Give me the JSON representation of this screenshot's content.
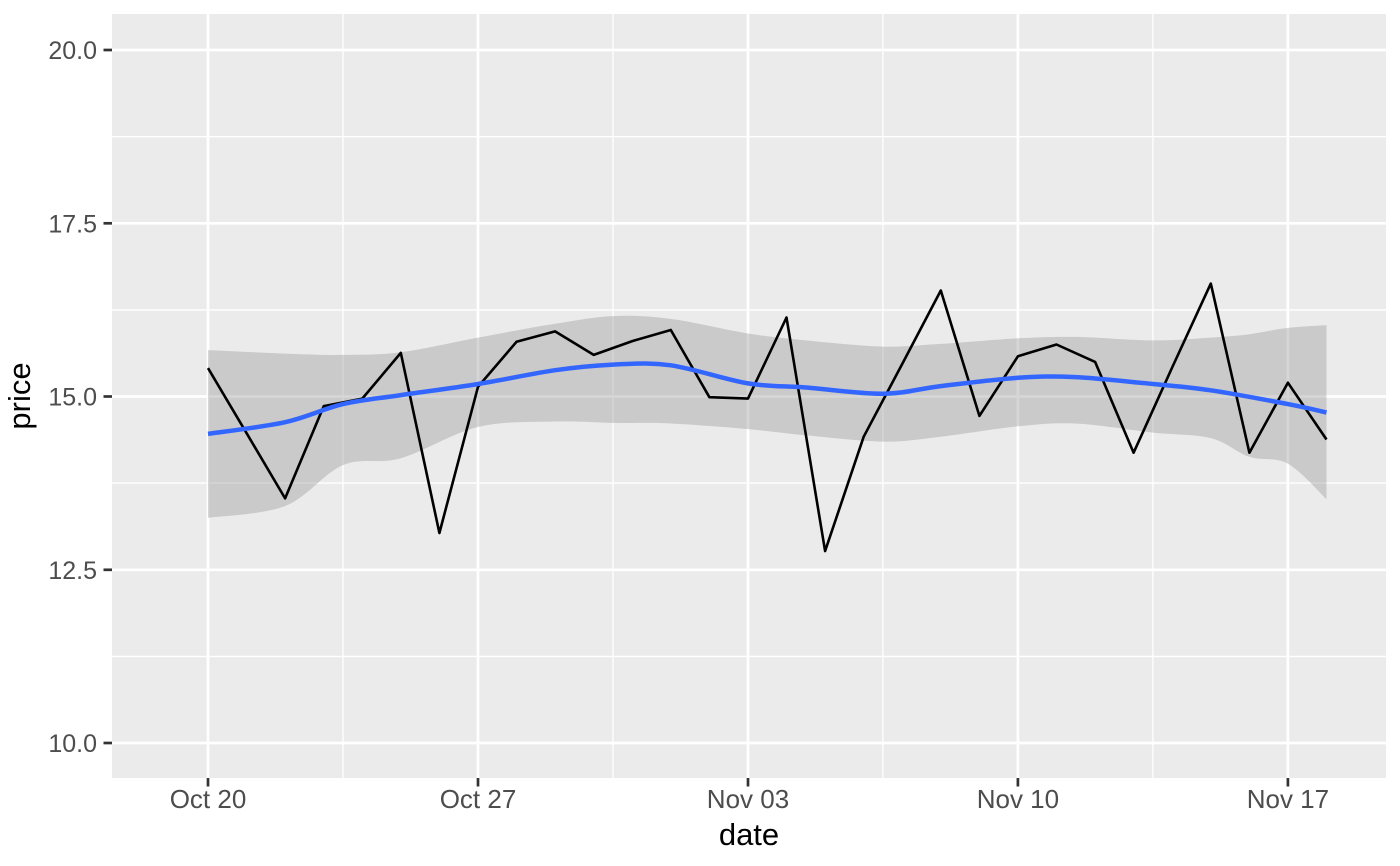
{
  "figure": {
    "x_title": "date",
    "y_title": "price",
    "background": "#FFFFFF",
    "panel_background": "#EBEBEB",
    "gridline_color": "#FFFFFF",
    "tick_mark_color": "#333333",
    "tick_label_color": "#4D4D4D",
    "axis_title_color": "#000000"
  },
  "chart_data": {
    "type": "line",
    "title": "",
    "xlabel": "date",
    "ylabel": "price",
    "grid": true,
    "legend": "none",
    "x_tick_labels": [
      "Oct 20",
      "Oct 27",
      "Nov 03",
      "Nov 10",
      "Nov 17"
    ],
    "x_tick_days": [
      0,
      7,
      14,
      21,
      28
    ],
    "x_minor_days": [
      3.5,
      10.5,
      17.5,
      24.5
    ],
    "y_tick_labels": [
      "10.0",
      "12.5",
      "15.0",
      "17.5",
      "20.0"
    ],
    "y_tick_values": [
      10.0,
      12.5,
      15.0,
      17.5,
      20.0
    ],
    "y_minor_values": [
      11.25,
      13.75,
      16.25,
      18.75
    ],
    "x_range_days": [
      -2.489,
      30.543
    ],
    "ylim": [
      9.495,
      20.52
    ],
    "dates": [
      "Oct 20",
      "Oct 21",
      "Oct 22",
      "Oct 23",
      "Oct 24",
      "Oct 25",
      "Oct 26",
      "Oct 27",
      "Oct 28",
      "Oct 29",
      "Oct 30",
      "Oct 31",
      "Nov 01",
      "Nov 02",
      "Nov 03",
      "Nov 04",
      "Nov 05",
      "Nov 06",
      "Nov 07",
      "Nov 08",
      "Nov 09",
      "Nov 10",
      "Nov 11",
      "Nov 12",
      "Nov 13",
      "Nov 14",
      "Nov 15",
      "Nov 16",
      "Nov 17",
      "Nov 18"
    ],
    "series": [
      {
        "name": "price",
        "type": "line",
        "color": "#000000",
        "stroke_width": 2.6,
        "values": [
          15.41,
          14.47,
          13.53,
          14.86,
          14.97,
          15.63,
          13.03,
          15.14,
          15.79,
          15.94,
          15.6,
          15.8,
          15.96,
          14.99,
          14.97,
          16.14,
          12.77,
          14.42,
          15.47,
          16.53,
          14.72,
          15.58,
          15.75,
          15.5,
          14.19,
          15.42,
          16.63,
          14.19,
          15.2,
          14.38
        ]
      },
      {
        "name": "loess_smooth",
        "type": "smooth",
        "color": "#3366FF",
        "stroke_width": 4.5,
        "x_days": [
          0,
          2,
          3.5,
          5,
          7,
          9,
          10.5,
          12,
          14,
          15.5,
          17.5,
          19,
          21,
          22.5,
          24.5,
          26,
          28,
          29
        ],
        "values": [
          14.46,
          14.63,
          14.89,
          15.02,
          15.18,
          15.38,
          15.46,
          15.45,
          15.19,
          15.13,
          15.04,
          15.15,
          15.27,
          15.28,
          15.18,
          15.09,
          14.89,
          14.77
        ]
      },
      {
        "name": "confidence_ribbon",
        "type": "ribbon",
        "fill": "#999999",
        "opacity": 0.4,
        "x_days": [
          0,
          2,
          3.5,
          5,
          7,
          9,
          10.5,
          12,
          14,
          15.5,
          17.5,
          19,
          21,
          22.5,
          24.5,
          26,
          27,
          28,
          29
        ],
        "upper": [
          15.67,
          15.62,
          15.6,
          15.64,
          15.85,
          16.05,
          16.16,
          16.12,
          15.91,
          15.81,
          15.72,
          15.76,
          15.84,
          15.86,
          15.81,
          15.85,
          15.9,
          15.99,
          16.03
        ],
        "lower": [
          13.25,
          13.42,
          14.01,
          14.11,
          14.56,
          14.64,
          14.62,
          14.61,
          14.53,
          14.44,
          14.35,
          14.42,
          14.57,
          14.61,
          14.48,
          14.4,
          14.13,
          14.03,
          13.52
        ]
      }
    ]
  }
}
